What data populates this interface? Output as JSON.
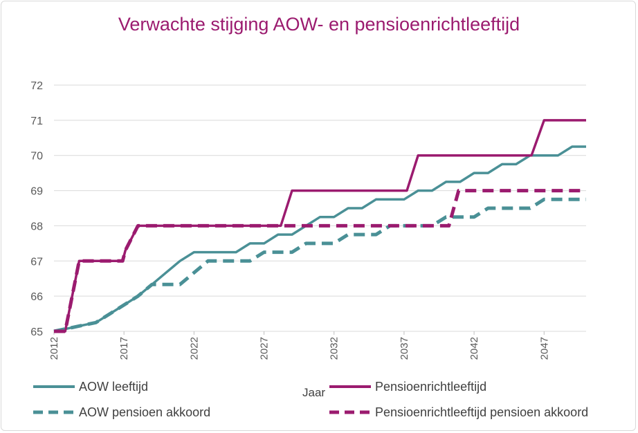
{
  "chart_data": {
    "type": "line",
    "title": "Verwachte stijging  AOW- en pensioenrichtleeftijd",
    "xlabel": "Jaar",
    "ylabel": "",
    "xlim": [
      2012,
      2050
    ],
    "ylim": [
      65,
      72
    ],
    "xticks": [
      "2012",
      "2017",
      "2022",
      "2027",
      "2032",
      "2037",
      "2042",
      "2047"
    ],
    "yticks": [
      "65",
      "66",
      "67",
      "68",
      "69",
      "70",
      "71",
      "72"
    ],
    "grid": true,
    "legend_position": "bottom",
    "series": [
      {
        "name": "AOW leeftijd",
        "color": "#4a9096",
        "dash": "solid",
        "x": [
          2012,
          2013,
          2014,
          2015,
          2016,
          2017,
          2018,
          2019,
          2020,
          2021,
          2022,
          2023,
          2024,
          2025,
          2026,
          2027,
          2028,
          2029,
          2030,
          2031,
          2032,
          2033,
          2034,
          2035,
          2036,
          2037,
          2038,
          2039,
          2040,
          2041,
          2042,
          2043,
          2044,
          2045,
          2046,
          2047,
          2048,
          2049,
          2050
        ],
        "y": [
          65.0,
          65.083,
          65.167,
          65.25,
          65.5,
          65.75,
          66.0,
          66.333,
          66.667,
          67.0,
          67.25,
          67.25,
          67.25,
          67.25,
          67.5,
          67.5,
          67.75,
          67.75,
          68.0,
          68.25,
          68.25,
          68.5,
          68.5,
          68.75,
          68.75,
          68.75,
          69.0,
          69.0,
          69.25,
          69.25,
          69.5,
          69.5,
          69.75,
          69.75,
          70.0,
          70.0,
          70.0,
          70.25,
          70.25
        ]
      },
      {
        "name": "Pensioenrichtleeftijd",
        "color": "#9b1b6f",
        "dash": "solid",
        "x": [
          2012,
          2012.8,
          2013.8,
          2014,
          2016.9,
          2017.1,
          2018,
          2028.2,
          2029,
          2037.2,
          2038,
          2046.1,
          2047,
          2050
        ],
        "y": [
          65,
          65,
          67,
          67,
          67,
          67.3,
          68,
          68,
          69,
          69,
          70,
          70,
          71,
          71
        ]
      },
      {
        "name": "AOW pensioen akkoord",
        "color": "#4a9096",
        "dash": "dashed",
        "x": [
          2012,
          2013,
          2014,
          2015,
          2016,
          2017,
          2018,
          2019,
          2020,
          2021,
          2022,
          2023,
          2024,
          2025,
          2026,
          2027,
          2028,
          2029,
          2030,
          2031,
          2032,
          2033,
          2034,
          2035,
          2036,
          2037,
          2038,
          2039,
          2040,
          2041,
          2042,
          2043,
          2044,
          2045,
          2046,
          2047,
          2048,
          2049,
          2050
        ],
        "y": [
          65.0,
          65.083,
          65.167,
          65.25,
          65.5,
          65.75,
          66.0,
          66.333,
          66.333,
          66.333,
          66.667,
          67.0,
          67.0,
          67.0,
          67.0,
          67.25,
          67.25,
          67.25,
          67.5,
          67.5,
          67.5,
          67.75,
          67.75,
          67.75,
          68.0,
          68.0,
          68.0,
          68.0,
          68.25,
          68.25,
          68.25,
          68.5,
          68.5,
          68.5,
          68.5,
          68.75,
          68.75,
          68.75,
          68.75
        ]
      },
      {
        "name": "Pensioenrichtleeftijd pensioen akkoord",
        "color": "#9b1b6f",
        "dash": "dashed",
        "x": [
          2012,
          2012.8,
          2013.8,
          2014,
          2016.9,
          2017.1,
          2018,
          2040.2,
          2040.9,
          2050
        ],
        "y": [
          65,
          65,
          67,
          67,
          67,
          67.3,
          68,
          68,
          69,
          69
        ]
      }
    ]
  }
}
